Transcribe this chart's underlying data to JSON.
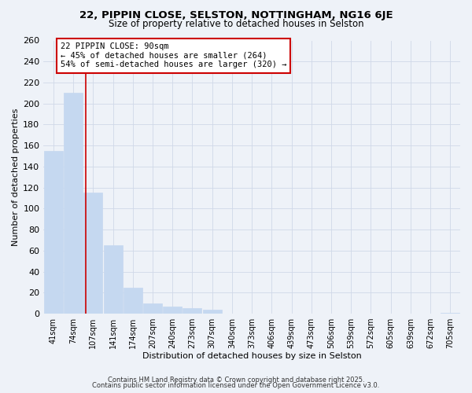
{
  "title_line1": "22, PIPPIN CLOSE, SELSTON, NOTTINGHAM, NG16 6JE",
  "title_line2": "Size of property relative to detached houses in Selston",
  "xlabel": "Distribution of detached houses by size in Selston",
  "ylabel": "Number of detached properties",
  "bar_labels": [
    "41sqm",
    "74sqm",
    "107sqm",
    "141sqm",
    "174sqm",
    "207sqm",
    "240sqm",
    "273sqm",
    "307sqm",
    "340sqm",
    "373sqm",
    "406sqm",
    "439sqm",
    "473sqm",
    "506sqm",
    "539sqm",
    "572sqm",
    "605sqm",
    "639sqm",
    "672sqm",
    "705sqm"
  ],
  "bar_values": [
    155,
    210,
    115,
    65,
    25,
    10,
    7,
    5,
    4,
    0,
    0,
    0,
    0,
    0,
    0,
    0,
    0,
    0,
    0,
    0,
    1
  ],
  "bar_color": "#c5d8f0",
  "bar_edge_color": "#c5d8f0",
  "grid_color": "#d0d8e8",
  "red_line_x": 1.62,
  "annotation_title": "22 PIPPIN CLOSE: 90sqm",
  "annotation_line1": "← 45% of detached houses are smaller (264)",
  "annotation_line2": "54% of semi-detached houses are larger (320) →",
  "annotation_box_color": "#ffffff",
  "annotation_box_edge": "#cc0000",
  "footer_line1": "Contains HM Land Registry data © Crown copyright and database right 2025.",
  "footer_line2": "Contains public sector information licensed under the Open Government Licence v3.0.",
  "ylim": [
    0,
    260
  ],
  "yticks": [
    0,
    20,
    40,
    60,
    80,
    100,
    120,
    140,
    160,
    180,
    200,
    220,
    240,
    260
  ],
  "bg_color": "#eef2f8"
}
